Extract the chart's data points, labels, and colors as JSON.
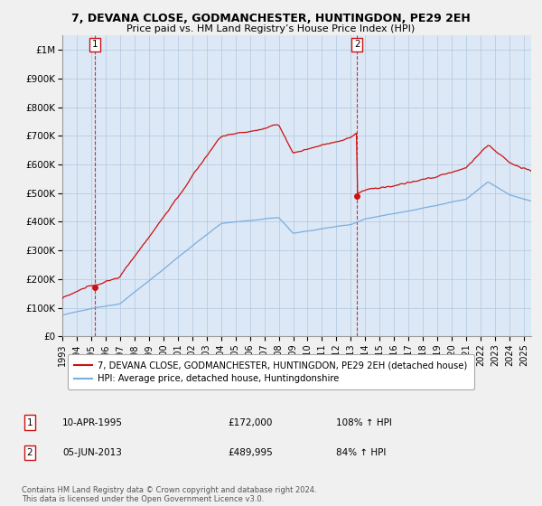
{
  "title": "7, DEVANA CLOSE, GODMANCHESTER, HUNTINGDON, PE29 2EH",
  "subtitle": "Price paid vs. HM Land Registry’s House Price Index (HPI)",
  "xlim_start": 1993,
  "xlim_end": 2025.5,
  "ylim": [
    0,
    1050000
  ],
  "yticks": [
    0,
    100000,
    200000,
    300000,
    400000,
    500000,
    600000,
    700000,
    800000,
    900000,
    1000000
  ],
  "ytick_labels": [
    "£0",
    "£100K",
    "£200K",
    "£300K",
    "£400K",
    "£500K",
    "£600K",
    "£700K",
    "£800K",
    "£900K",
    "£1M"
  ],
  "xticks": [
    1993,
    1994,
    1995,
    1996,
    1997,
    1998,
    1999,
    2000,
    2001,
    2002,
    2003,
    2004,
    2005,
    2006,
    2007,
    2008,
    2009,
    2010,
    2011,
    2012,
    2013,
    2014,
    2015,
    2016,
    2017,
    2018,
    2019,
    2020,
    2021,
    2022,
    2023,
    2024,
    2025
  ],
  "hpi_color": "#7aade0",
  "price_color": "#cc1111",
  "sale_1_x": 1995.27,
  "sale_1_y": 172000,
  "sale_2_x": 2013.42,
  "sale_2_y": 489995,
  "label_1": "1",
  "label_2": "2",
  "legend_property": "7, DEVANA CLOSE, GODMANCHESTER, HUNTINGDON, PE29 2EH (detached house)",
  "legend_hpi": "HPI: Average price, detached house, Huntingdonshire",
  "annotation_1_date": "10-APR-1995",
  "annotation_1_price": "£172,000",
  "annotation_1_hpi": "108% ↑ HPI",
  "annotation_2_date": "05-JUN-2013",
  "annotation_2_price": "£489,995",
  "annotation_2_hpi": "84% ↑ HPI",
  "footer": "Contains HM Land Registry data © Crown copyright and database right 2024.\nThis data is licensed under the Open Government Licence v3.0.",
  "background_color": "#f0f0f0",
  "plot_bg_color": "#dce8f5",
  "grid_color": "#b0c8e0"
}
